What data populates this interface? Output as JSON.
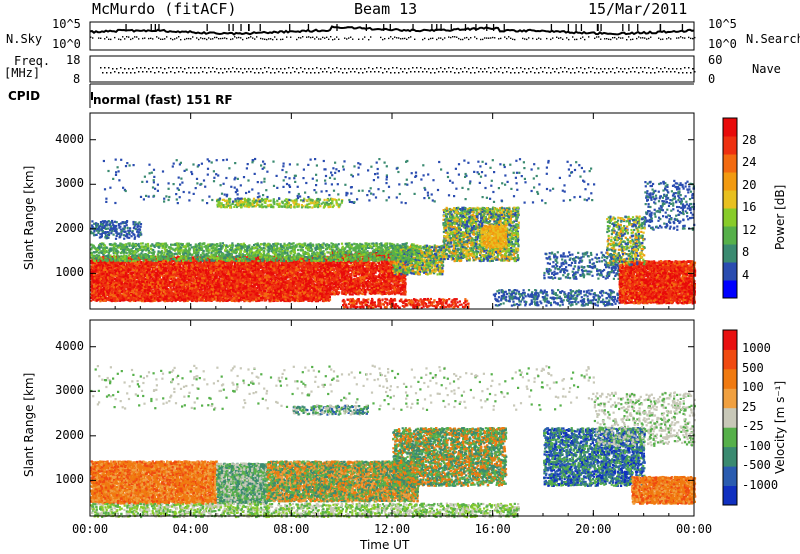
{
  "header": {
    "station": "McMurdo (fitACF)",
    "beam": "Beam 13",
    "date": "15/Mar/2011"
  },
  "top_panel": {
    "left_label": "N.Sky",
    "right_label": "N.Search",
    "left_ticks": [
      "10^5",
      "10^0"
    ],
    "right_ticks": [
      "10^5",
      "10^0"
    ]
  },
  "freq_panel": {
    "left_label_line1": "Freq.",
    "left_label_line2": "[MHz]",
    "left_ticks": [
      "18",
      "8"
    ],
    "right_label": "Nave",
    "right_ticks": [
      "60",
      "0"
    ]
  },
  "cpid_panel": {
    "label": "CPID",
    "mode": "normal (fast) 151 RF"
  },
  "chart_data": [
    {
      "type": "heatmap",
      "title": "",
      "xlabel": "Time UT",
      "ylabel": "Slant Range [km]",
      "xticks": [
        "00:00",
        "04:00",
        "08:00",
        "12:00",
        "16:00",
        "20:00",
        "00:00"
      ],
      "yticks": [
        "1000",
        "2000",
        "3000",
        "4000"
      ],
      "ylim": [
        200,
        4600
      ],
      "xlim_hours": [
        0,
        24
      ],
      "colorbar_label": "Power [dB]",
      "colorbar_ticks": [
        "4",
        "8",
        "12",
        "16",
        "20",
        "24",
        "28"
      ],
      "colorbar_colors": [
        "#0000ff",
        "#2a4cb0",
        "#3a8a70",
        "#56b04a",
        "#88cc2a",
        "#e8c020",
        "#f29a10",
        "#f36a10",
        "#ee3010",
        "#e80a0a"
      ]
    },
    {
      "type": "heatmap",
      "title": "",
      "xlabel": "Time UT",
      "ylabel": "Slant Range [km]",
      "xticks": [
        "00:00",
        "04:00",
        "08:00",
        "12:00",
        "16:00",
        "20:00",
        "00:00"
      ],
      "yticks": [
        "1000",
        "2000",
        "3000",
        "4000"
      ],
      "ylim": [
        200,
        4600
      ],
      "xlim_hours": [
        0,
        24
      ],
      "colorbar_label": "Velocity [m s⁻¹]",
      "colorbar_ticks": [
        "1000",
        "500",
        "100",
        "25",
        "-25",
        "-100",
        "-500",
        "-1000"
      ],
      "colorbar_colors": [
        "#1030c0",
        "#2a5cb0",
        "#3a8a70",
        "#56b04a",
        "#c8c8b8",
        "#f0a040",
        "#f07a10",
        "#f04a10",
        "#e81010"
      ]
    }
  ]
}
